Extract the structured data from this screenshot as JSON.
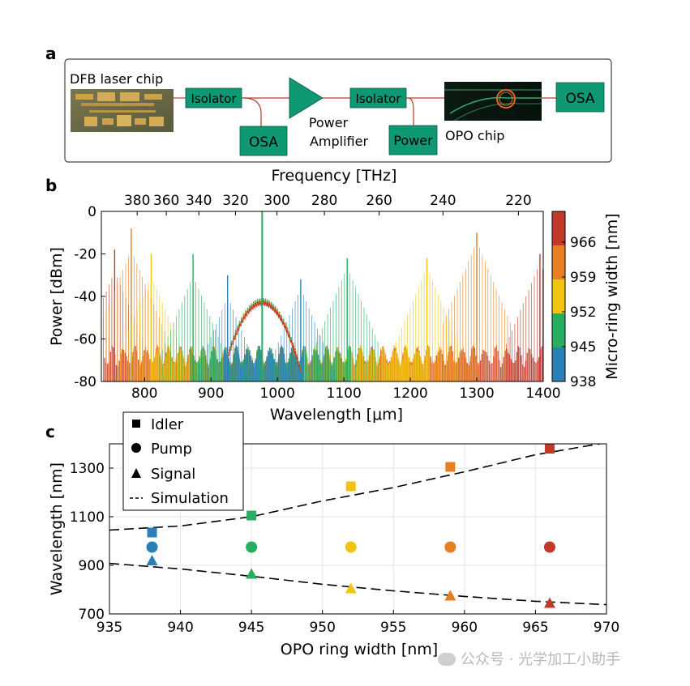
{
  "panel_labels": {
    "a": "a",
    "b": "b",
    "c": "c"
  },
  "panel_a": {
    "blocks": {
      "dfb_label": "DFB laser chip",
      "isolator1": "Isolator",
      "osa1": "OSA",
      "amplifier_label_1": "Power",
      "amplifier_label_2": "Amplifier",
      "isolator2": "Isolator",
      "power": "Power",
      "opo_label": "OPO chip",
      "osa2": "OSA"
    },
    "colors": {
      "block_fill": "#0e9974",
      "frame": "#444444",
      "fiber": "#c0392b",
      "chip_bg": "#6d6b46"
    }
  },
  "watermark": "公众号 · 光学加工小助手",
  "chart_data": [
    {
      "type": "line",
      "panel": "b",
      "xlabel": "Wavelength [μm]",
      "ylabel": "Power [dBm]",
      "top_axis_label": "Frequency [THz]",
      "xlim": [
        735,
        1400
      ],
      "ylim": [
        -80,
        0
      ],
      "x_ticks": [
        800,
        900,
        1000,
        1100,
        1200,
        1300,
        1400
      ],
      "y_ticks": [
        0,
        -20,
        -40,
        -60,
        -80
      ],
      "top_ticks": [
        380,
        360,
        340,
        320,
        300,
        280,
        260,
        240,
        220
      ],
      "colorbar": {
        "label": "Micro-ring width [nm]",
        "ticks": [
          966,
          959,
          952,
          945,
          938
        ],
        "colors": [
          "#c0392b",
          "#e67e22",
          "#f1c40f",
          "#27ae60",
          "#2980b9"
        ]
      },
      "pump": {
        "wavelength": 977,
        "peak_dbm": 0,
        "shoulder_dbm": -42
      },
      "series": [
        {
          "name": "938",
          "color": "#2980b9",
          "signal": 925,
          "idler": 1035,
          "peak_dbm": -30,
          "floor_from": 920,
          "floor_to": 1040
        },
        {
          "name": "945",
          "color": "#27ae60",
          "signal": 873,
          "idler": 1105,
          "peak_dbm": -20,
          "floor_from": 870,
          "floor_to": 1110
        },
        {
          "name": "952",
          "color": "#f1c40f",
          "signal": 810,
          "idler": 1225,
          "peak_dbm": -20,
          "floor_from": 810,
          "floor_to": 1230
        },
        {
          "name": "959",
          "color": "#e67e22",
          "signal": 780,
          "idler": 1300,
          "peak_dbm": -8,
          "floor_from": 780,
          "floor_to": 1305
        },
        {
          "name": "966",
          "color": "#c0392b",
          "signal": 755,
          "idler": 1395,
          "peak_dbm": -18,
          "floor_from": 740,
          "floor_to": 1400
        }
      ]
    },
    {
      "type": "scatter",
      "panel": "c",
      "xlabel": "OPO ring width [nm]",
      "ylabel": "Wavelength [nm]",
      "xlim": [
        935,
        970
      ],
      "ylim": [
        700,
        1400
      ],
      "x_ticks": [
        935,
        940,
        945,
        950,
        955,
        960,
        965,
        970
      ],
      "y_ticks": [
        700,
        900,
        1100,
        1300
      ],
      "grid": true,
      "legend": [
        "Idler",
        "Pump",
        "Signal",
        "Simulation"
      ],
      "legend_position": "top-left",
      "series": [
        {
          "name": "Idler",
          "marker": "square",
          "points": [
            {
              "x": 938,
              "y": 1035,
              "color": "#2980b9"
            },
            {
              "x": 945,
              "y": 1105,
              "color": "#27ae60"
            },
            {
              "x": 952,
              "y": 1225,
              "color": "#f1c40f"
            },
            {
              "x": 959,
              "y": 1305,
              "color": "#e67e22"
            },
            {
              "x": 966,
              "y": 1380,
              "color": "#c0392b"
            }
          ]
        },
        {
          "name": "Pump",
          "marker": "circle",
          "points": [
            {
              "x": 938,
              "y": 975,
              "color": "#2980b9"
            },
            {
              "x": 945,
              "y": 975,
              "color": "#27ae60"
            },
            {
              "x": 952,
              "y": 975,
              "color": "#f1c40f"
            },
            {
              "x": 959,
              "y": 975,
              "color": "#e67e22"
            },
            {
              "x": 966,
              "y": 975,
              "color": "#c0392b"
            }
          ]
        },
        {
          "name": "Signal",
          "marker": "triangle",
          "points": [
            {
              "x": 938,
              "y": 920,
              "color": "#2980b9"
            },
            {
              "x": 945,
              "y": 865,
              "color": "#27ae60"
            },
            {
              "x": 952,
              "y": 805,
              "color": "#f1c40f"
            },
            {
              "x": 959,
              "y": 775,
              "color": "#e67e22"
            },
            {
              "x": 966,
              "y": 745,
              "color": "#c0392b"
            }
          ]
        },
        {
          "name": "Simulation",
          "marker": "dashed-line",
          "curves": [
            {
              "x": [
                935,
                940,
                945,
                950,
                955,
                960,
                965,
                970
              ],
              "y": [
                1045,
                1062,
                1100,
                1165,
                1220,
                1285,
                1355,
                1405
              ]
            },
            {
              "x": [
                935,
                940,
                945,
                950,
                955,
                960,
                965,
                970
              ],
              "y": [
                908,
                885,
                855,
                822,
                795,
                772,
                752,
                738
              ]
            }
          ]
        }
      ]
    }
  ]
}
